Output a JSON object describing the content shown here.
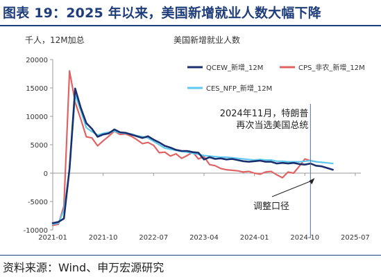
{
  "figure": {
    "title": "图表 19：2025 年以来，美国新增就业人数大幅下降",
    "source": "资料来源：Wind、申万宏源研究"
  },
  "chart_data": {
    "type": "line",
    "title": "美国新增就业人数",
    "ylabel": "千人，12M加总",
    "xlabel": "",
    "ylim": [
      -10000,
      20000
    ],
    "yticks": [
      -10000,
      -5000,
      0,
      5000,
      10000,
      15000,
      20000
    ],
    "xlim": [
      "2021-01",
      "2025-08"
    ],
    "xticks": [
      "2021-01",
      "2021-10",
      "2022-07",
      "2023-04",
      "2024-01",
      "2024-10",
      "2025-07"
    ],
    "grid": false,
    "legend": "top",
    "annotations": [
      {
        "lines": [
          "2024年11月，特朗普",
          "再次当选美国总统"
        ],
        "x": "2024-11"
      },
      {
        "text": "调整口径",
        "x": "2024-12"
      }
    ],
    "series": [
      {
        "name": "QCEW_新增_12M",
        "color": "#1a2f6e",
        "x": [
          "2021-01",
          "2021-02",
          "2021-03",
          "2021-04",
          "2021-05",
          "2021-06",
          "2021-07",
          "2021-08",
          "2021-09",
          "2021-10",
          "2021-11",
          "2021-12",
          "2022-01",
          "2022-02",
          "2022-03",
          "2022-04",
          "2022-05",
          "2022-06",
          "2022-07",
          "2022-08",
          "2022-09",
          "2022-10",
          "2022-11",
          "2022-12",
          "2023-01",
          "2023-02",
          "2023-03",
          "2023-04",
          "2023-05",
          "2023-06",
          "2023-07",
          "2023-08",
          "2023-09",
          "2023-10",
          "2023-11",
          "2023-12",
          "2024-01",
          "2024-02",
          "2024-03",
          "2024-04",
          "2024-05",
          "2024-06",
          "2024-07",
          "2024-08",
          "2024-09",
          "2024-10",
          "2024-11",
          "2024-12",
          "2025-01",
          "2025-02",
          "2025-03"
        ],
        "values": [
          -8800,
          -8600,
          -8000,
          800,
          14900,
          11500,
          8800,
          7800,
          6400,
          6800,
          7000,
          7700,
          7200,
          7100,
          6800,
          6500,
          6200,
          6500,
          5900,
          5400,
          4800,
          4500,
          4100,
          3900,
          3900,
          3700,
          3600,
          2400,
          2800,
          2500,
          2600,
          2400,
          2500,
          2300,
          2100,
          2000,
          2100,
          2200,
          2000,
          2000,
          1700,
          1800,
          1700,
          1800,
          1600,
          1500,
          1700,
          1300,
          1200,
          900,
          600
        ]
      },
      {
        "name": "CPS_非农_新增_12M",
        "color": "#e06363",
        "x": [
          "2021-01",
          "2021-02",
          "2021-03",
          "2021-04",
          "2021-05",
          "2021-06",
          "2021-07",
          "2021-08",
          "2021-09",
          "2021-10",
          "2021-11",
          "2021-12",
          "2022-01",
          "2022-02",
          "2022-03",
          "2022-04",
          "2022-05",
          "2022-06",
          "2022-07",
          "2022-08",
          "2022-09",
          "2022-10",
          "2022-11",
          "2022-12",
          "2023-01",
          "2023-02",
          "2023-03",
          "2023-04",
          "2023-05",
          "2023-06",
          "2023-07",
          "2023-08",
          "2023-09",
          "2023-10",
          "2023-11",
          "2023-12",
          "2024-01",
          "2024-02",
          "2024-03",
          "2024-04",
          "2024-05",
          "2024-06",
          "2024-07",
          "2024-08",
          "2024-09",
          "2024-10",
          "2024-11",
          "2024-12",
          "2025-01",
          "2025-02",
          "2025-03"
        ],
        "values": [
          -9200,
          -9000,
          -5800,
          18000,
          12500,
          9500,
          6400,
          6200,
          4800,
          5700,
          6500,
          7400,
          6800,
          6900,
          6500,
          5900,
          5200,
          5400,
          4900,
          3600,
          3700,
          3000,
          3400,
          2600,
          3100,
          3700,
          2500,
          2900,
          1500,
          1300,
          800,
          600,
          500,
          400,
          200,
          300,
          0,
          -200,
          200,
          300,
          -300,
          -800,
          200,
          0,
          1200,
          2500,
          2200,
          2000,
          null,
          null,
          null
        ]
      },
      {
        "name": "CES_NFP_新增_12M",
        "color": "#5fc8ee",
        "x": [
          "2021-01",
          "2021-02",
          "2021-03",
          "2021-04",
          "2021-05",
          "2021-06",
          "2021-07",
          "2021-08",
          "2021-09",
          "2021-10",
          "2021-11",
          "2021-12",
          "2022-01",
          "2022-02",
          "2022-03",
          "2022-04",
          "2022-05",
          "2022-06",
          "2022-07",
          "2022-08",
          "2022-09",
          "2022-10",
          "2022-11",
          "2022-12",
          "2023-01",
          "2023-02",
          "2023-03",
          "2023-04",
          "2023-05",
          "2023-06",
          "2023-07",
          "2023-08",
          "2023-09",
          "2023-10",
          "2023-11",
          "2023-12",
          "2024-01",
          "2024-02",
          "2024-03",
          "2024-04",
          "2024-05",
          "2024-06",
          "2024-07",
          "2024-08",
          "2024-09",
          "2024-10",
          "2024-11",
          "2024-12",
          "2025-01",
          "2025-02",
          "2025-03"
        ],
        "values": [
          -9000,
          -8800,
          -6500,
          500,
          13800,
          11000,
          8000,
          7300,
          6700,
          7000,
          7200,
          7400,
          7100,
          7000,
          6900,
          6600,
          6400,
          6200,
          5600,
          5000,
          4400,
          4200,
          4000,
          3800,
          3700,
          3500,
          3300,
          3100,
          3000,
          2900,
          2800,
          2800,
          2700,
          2600,
          2500,
          2400,
          2300,
          2400,
          2300,
          2300,
          2100,
          2100,
          2000,
          2000,
          2000,
          2100,
          2200,
          2000,
          1900,
          1800,
          1700
        ]
      }
    ]
  }
}
